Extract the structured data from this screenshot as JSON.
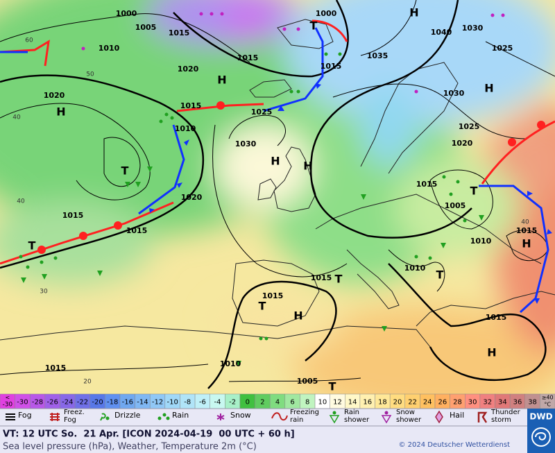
{
  "map": {
    "pressure_labels": [
      1000,
      1005,
      1015,
      1010,
      1015,
      1000,
      1015,
      1035,
      1040,
      1030,
      1025,
      1030,
      1025,
      1020,
      1020,
      1020,
      1015,
      1025,
      1010,
      1030,
      1020,
      1015,
      1015,
      1015,
      1005,
      1010,
      1015,
      1010,
      1015,
      1015,
      1015,
      1010,
      1015,
      1005
    ],
    "pressure_systems": [
      "H",
      "H",
      "H",
      "H",
      "T",
      "H",
      "H",
      "T",
      "T",
      "H",
      "T",
      "T",
      "H",
      "T",
      "H",
      "T",
      "T"
    ],
    "latitude_labels": [
      60,
      50,
      40,
      40,
      30,
      20,
      40
    ]
  },
  "temperature_scale": {
    "below_label": "<",
    "below_value": -30,
    "below_color": "#e040e0",
    "values": [
      -30,
      -28,
      -26,
      -24,
      -22,
      -20,
      -18,
      -16,
      -14,
      -12,
      -10,
      -8,
      -6,
      -4,
      -2,
      0,
      2,
      4,
      6,
      8,
      10,
      12,
      14,
      16,
      18,
      20,
      22,
      24,
      26,
      28,
      30,
      32,
      34,
      36,
      38
    ],
    "colors": [
      "#d050e8",
      "#b858e8",
      "#a060e8",
      "#8868e8",
      "#7070e8",
      "#5878e8",
      "#6090f0",
      "#70a8f0",
      "#80b8f4",
      "#90c8f6",
      "#a0d8f8",
      "#b0e4f8",
      "#c0f0f8",
      "#c8f8f0",
      "#a8f0c8",
      "#40c040",
      "#60cc60",
      "#80dc80",
      "#a0e8a0",
      "#c0f4c0",
      "#ffffff",
      "#fffbe0",
      "#fff8c8",
      "#fff0b0",
      "#ffe898",
      "#ffdc80",
      "#ffd070",
      "#ffc060",
      "#ffb060",
      "#ffa070",
      "#ff9080",
      "#f08080",
      "#e07878",
      "#d08080",
      "#c09090"
    ],
    "above_label": "≥40",
    "above_unit": "°C",
    "above_color": "#c0a8a8"
  },
  "legend": [
    [
      "Fog"
    ],
    [
      "Freez.",
      "Fog"
    ],
    [
      "Drizzle"
    ],
    [
      "Rain"
    ],
    [
      "Snow"
    ],
    [
      "Freezing",
      "rain"
    ],
    [
      "Rain",
      "shower"
    ],
    [
      "Snow",
      "shower"
    ],
    [
      "Hail"
    ],
    [
      "Thunder",
      "storm"
    ]
  ],
  "footer": {
    "valid_time": "VT: 12 UTC So.  21 Apr. [ICON 2024-04-19  00 UTC + 60 h]",
    "description": "Sea level pressure (hPa), Weather, Temperature 2m (°C)",
    "copyright": "© 2024 Deutscher Wetterdienst",
    "logo": "DWD"
  }
}
